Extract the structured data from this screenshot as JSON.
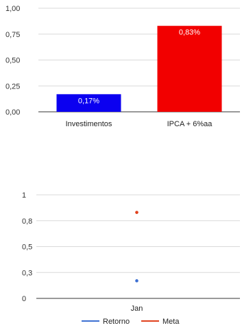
{
  "chart_data": [
    {
      "type": "bar",
      "categories": [
        "Investimentos",
        "IPCA + 6%aa"
      ],
      "values": [
        0.17,
        0.83
      ],
      "data_labels": [
        "0,17%",
        "0,83%"
      ],
      "colors": [
        "#0b00f0",
        "#f20000"
      ],
      "y_ticks": [
        "0,00",
        "0,25",
        "0,50",
        "0,75",
        "1,00"
      ],
      "ylim": [
        0,
        1
      ],
      "grid": true
    },
    {
      "type": "scatter",
      "categories": [
        "Jan"
      ],
      "series": [
        {
          "name": "Retorno",
          "values": [
            0.17
          ],
          "color": "#3c6fd2"
        },
        {
          "name": "Meta",
          "values": [
            0.83
          ],
          "color": "#e0401c"
        }
      ],
      "y_ticks": [
        "0",
        "0,3",
        "0,5",
        "0,8",
        "1"
      ],
      "ylim": [
        0,
        1
      ],
      "grid": true,
      "legend": "bottom"
    }
  ]
}
